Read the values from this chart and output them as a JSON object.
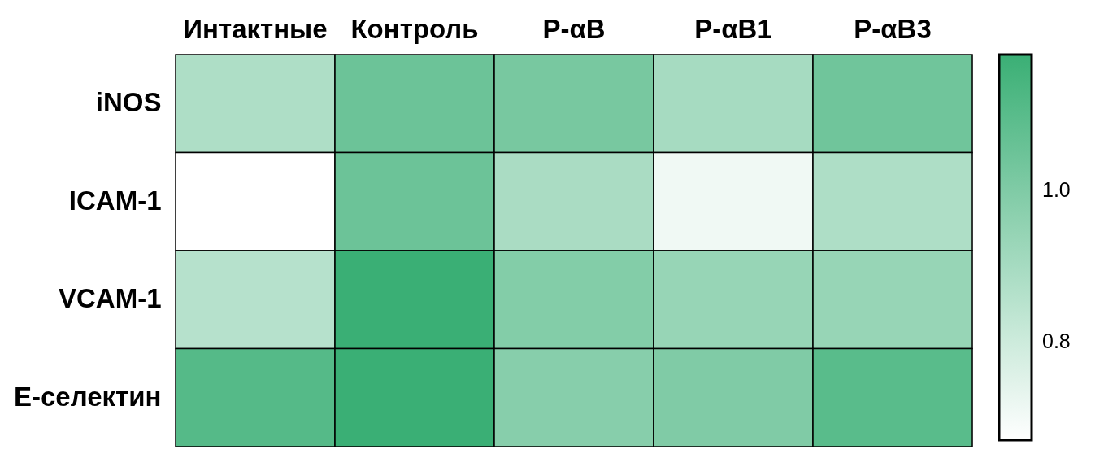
{
  "chart_data": {
    "type": "heatmap",
    "categories": [
      "Интактные",
      "Контроль",
      "P-αB",
      "P-αB1",
      "P-αB3"
    ],
    "y_categories": [
      "iNOS",
      "ICAM-1",
      "VCAM-1",
      "E-селектин"
    ],
    "cells": [
      [
        0.88,
        1.05,
        1.02,
        0.9,
        1.04
      ],
      [
        0.67,
        1.05,
        0.89,
        0.71,
        0.88
      ],
      [
        0.86,
        1.18,
        0.99,
        0.94,
        0.94
      ],
      [
        1.11,
        1.18,
        0.98,
        1.0,
        1.1
      ]
    ],
    "clim": [
      0.67,
      1.18
    ],
    "cticks": [
      0.8,
      {
        "value": 1,
        "label": "1.0"
      }
    ]
  }
}
